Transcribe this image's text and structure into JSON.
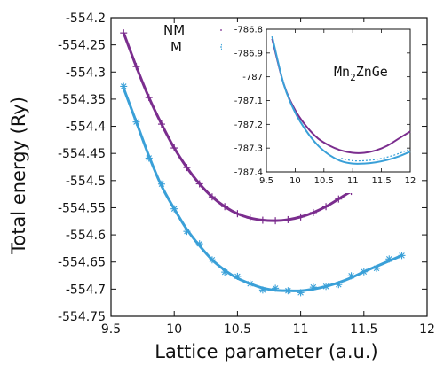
{
  "chart_data": [
    {
      "type": "line",
      "title": "",
      "xlabel": "Lattice parameter (a.u.)",
      "ylabel": "Total energy (Ry)",
      "xlim": [
        9.5,
        12
      ],
      "ylim": [
        -554.75,
        -554.2
      ],
      "x_ticks": [
        "9.5",
        "10",
        "10.5",
        "11",
        "11.5",
        "12"
      ],
      "y_ticks": [
        "-554.2",
        "-554.25",
        "-554.3",
        "-554.35",
        "-554.4",
        "-554.45",
        "-554.5",
        "-554.55",
        "-554.6",
        "-554.65",
        "-554.7",
        "-554.75"
      ],
      "legend": {
        "placement": "top-center",
        "entries": [
          "NM",
          "M"
        ]
      },
      "grid": false,
      "series": [
        {
          "name": "NM",
          "color": "#7b2d8e",
          "marker": "plus",
          "x": [
            9.6,
            9.7,
            9.8,
            9.9,
            10.0,
            10.1,
            10.2,
            10.3,
            10.4,
            10.5,
            10.6,
            10.7,
            10.8,
            10.9,
            11.0,
            11.1,
            11.2,
            11.3,
            11.4,
            11.5
          ],
          "y": [
            -554.228,
            -554.29,
            -554.347,
            -554.396,
            -554.44,
            -554.476,
            -554.506,
            -554.53,
            -554.548,
            -554.561,
            -554.569,
            -554.573,
            -554.574,
            -554.572,
            -554.567,
            -554.559,
            -554.548,
            -554.534,
            -554.52,
            -554.51
          ]
        },
        {
          "name": "M",
          "color": "#3aa0d8",
          "marker": "asterisk",
          "x": [
            9.6,
            9.7,
            9.8,
            9.9,
            10.0,
            10.1,
            10.2,
            10.3,
            10.4,
            10.5,
            10.6,
            10.7,
            10.8,
            10.9,
            11.0,
            11.1,
            11.2,
            11.3,
            11.4,
            11.5,
            11.6,
            11.7,
            11.8
          ],
          "y": [
            -554.33,
            -554.392,
            -554.455,
            -554.51,
            -554.552,
            -554.59,
            -554.62,
            -554.646,
            -554.665,
            -554.68,
            -554.69,
            -554.698,
            -554.702,
            -554.703,
            -554.703,
            -554.7,
            -554.695,
            -554.688,
            -554.679,
            -554.668,
            -554.658,
            -554.648,
            -554.638
          ]
        }
      ]
    },
    {
      "type": "line",
      "title": "Mn2ZnGe",
      "xlabel": "",
      "ylabel": "",
      "xlim": [
        9.5,
        12
      ],
      "ylim": [
        -787.4,
        -786.8
      ],
      "x_ticks": [
        "9.5",
        "10",
        "10.5",
        "11",
        "11.5",
        "12"
      ],
      "y_ticks": [
        "-786.8",
        "-786.9",
        "-787",
        "-787.1",
        "-787.2",
        "-787.3",
        "-787.4"
      ],
      "grid": false,
      "series": [
        {
          "name": "NM",
          "color": "#7b2d8e",
          "x": [
            9.6,
            9.8,
            10.0,
            10.2,
            10.4,
            10.6,
            10.8,
            11.0,
            11.2,
            11.4,
            11.6,
            11.8,
            12.0
          ],
          "y": [
            -786.84,
            -787.03,
            -787.14,
            -787.21,
            -787.26,
            -787.29,
            -787.31,
            -787.32,
            -787.32,
            -787.31,
            -787.29,
            -787.26,
            -787.23
          ]
        },
        {
          "name": "M",
          "color": "#3aa0d8",
          "x": [
            9.6,
            9.8,
            10.0,
            10.2,
            10.4,
            10.6,
            10.8,
            11.0,
            11.2,
            11.4,
            11.6,
            11.8,
            12.0
          ],
          "y": [
            -786.83,
            -787.03,
            -787.15,
            -787.23,
            -787.29,
            -787.33,
            -787.355,
            -787.365,
            -787.365,
            -787.36,
            -787.35,
            -787.335,
            -787.315
          ]
        }
      ]
    }
  ],
  "inset_label": {
    "base": "Mn",
    "sub1": "2",
    "rest": "ZnGe"
  }
}
